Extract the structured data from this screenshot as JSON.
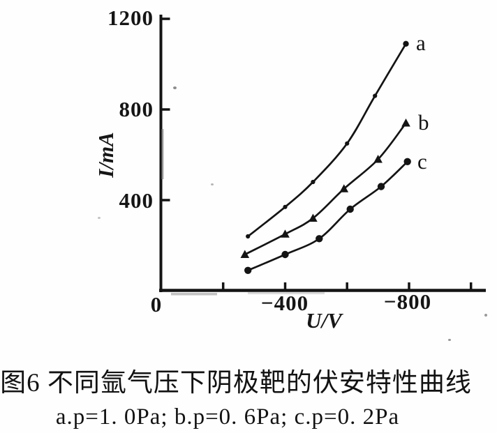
{
  "figure": {
    "y_axis": {
      "label": "I/mA",
      "tick_labels": [
        "1200",
        "800",
        "400"
      ],
      "origin_label": "0"
    },
    "x_axis": {
      "label": "U/V",
      "tick_labels": [
        "−400",
        "−800"
      ]
    }
  },
  "chart_data": {
    "type": "line",
    "title": "图6 不同氩气压下阴极靶的伏安特性曲线",
    "xlabel": "U/V",
    "ylabel": "I/mA",
    "xlim": [
      0,
      -1050
    ],
    "ylim": [
      0,
      1200
    ],
    "x_ticks_all": [
      -200,
      -400,
      -600,
      -800,
      -1000
    ],
    "x_ticks_labeled": [
      -400,
      -800
    ],
    "y_ticks_all": [
      400,
      800,
      1200
    ],
    "grid": false,
    "legend_position": "right-of-last-point",
    "series": [
      {
        "name": "a",
        "condition": "p=1. 0Pa",
        "marker": "dot",
        "x": [
          -280,
          -400,
          -490,
          -600,
          -690,
          -790
        ],
        "y": [
          240,
          370,
          480,
          650,
          860,
          1090
        ]
      },
      {
        "name": "b",
        "condition": "p=0. 6Pa",
        "marker": "triangle",
        "x": [
          -270,
          -400,
          -490,
          -590,
          -700,
          -790
        ],
        "y": [
          160,
          250,
          320,
          450,
          580,
          740
        ]
      },
      {
        "name": "c",
        "condition": "p=0. 2Pa",
        "marker": "circle",
        "x": [
          -280,
          -400,
          -510,
          -610,
          -710,
          -795
        ],
        "y": [
          90,
          160,
          230,
          360,
          460,
          570
        ]
      }
    ]
  },
  "caption": {
    "line1": "图6  不同氩气压下阴极靶的伏安特性曲线",
    "line2": "a.p=1. 0Pa; b.p=0. 6Pa; c.p=0. 2Pa"
  }
}
